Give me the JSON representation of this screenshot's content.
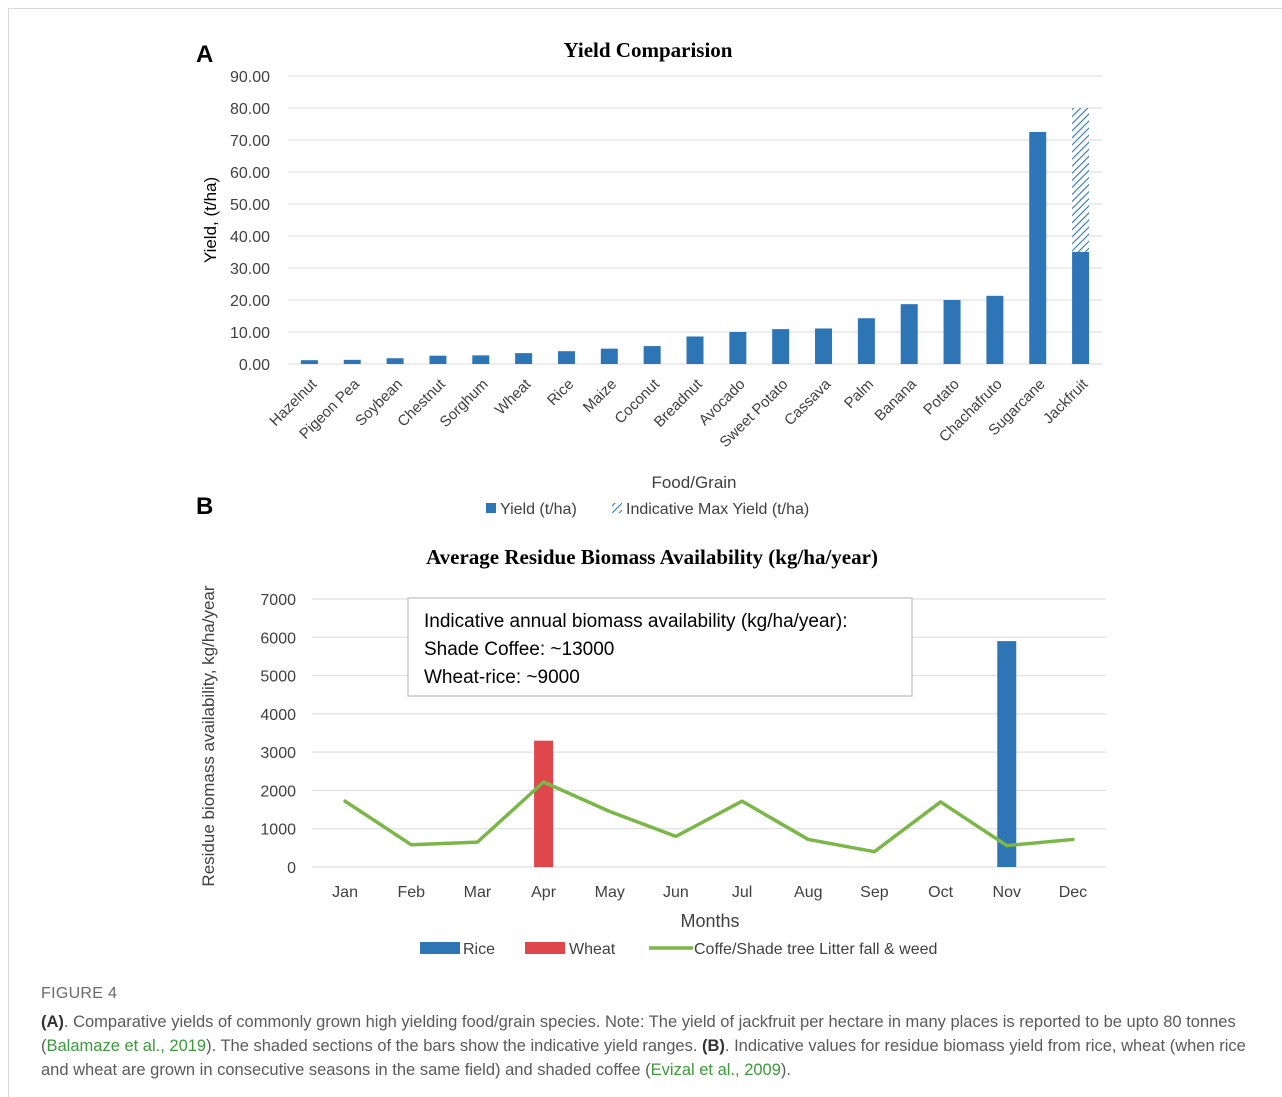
{
  "panel_a_letter": "A",
  "panel_b_letter": "B",
  "chart_data": [
    {
      "type": "bar",
      "title": "Yield Comparision",
      "xlabel": "Food/Grain",
      "ylabel": "Yield, (t/ha)",
      "ylim": [
        0,
        90
      ],
      "yticks": [
        "0.00",
        "10.00",
        "20.00",
        "30.00",
        "40.00",
        "50.00",
        "60.00",
        "70.00",
        "80.00",
        "90.00"
      ],
      "categories": [
        "Hazelnut",
        "Pigeon Pea",
        "Soybean",
        "Chestnut",
        "Sorghum",
        "Wheat",
        "Rice",
        "Maize",
        "Coconut",
        "Breadnut",
        "Avocado",
        "Sweet Potato",
        "Cassava",
        "Palm",
        "Banana",
        "Potato",
        "Chachafruto",
        "Sugarcane",
        "Jackfruit"
      ],
      "series": [
        {
          "name": "Yield (t/ha)",
          "color": "#2e75b6",
          "values": [
            1.2,
            1.3,
            1.8,
            2.6,
            2.7,
            3.4,
            4.0,
            4.8,
            5.6,
            8.6,
            10.0,
            10.9,
            11.1,
            14.3,
            18.7,
            20.0,
            21.3,
            72.5,
            35.0
          ]
        },
        {
          "name": "Indicative Max Yield (t/ha)",
          "color": "#2e75b6",
          "pattern": "hatched",
          "values": [
            0,
            0,
            0,
            0,
            0,
            0,
            0,
            0,
            0,
            0,
            0,
            0,
            0,
            0,
            0,
            0,
            0,
            0,
            45.0
          ]
        }
      ],
      "grid": true,
      "legend": "bottom"
    },
    {
      "type": "bar+line",
      "title": "Average Residue Biomass Availability (kg/ha/year)",
      "xlabel": "Months",
      "ylabel": "Residue biomass availability, kg/ha/year",
      "ylim": [
        0,
        7000
      ],
      "yticks": [
        "0",
        "1000",
        "2000",
        "3000",
        "4000",
        "5000",
        "6000",
        "7000"
      ],
      "categories": [
        "Jan",
        "Feb",
        "Mar",
        "Apr",
        "May",
        "Jun",
        "Jul",
        "Aug",
        "Sep",
        "Oct",
        "Nov",
        "Dec"
      ],
      "series": [
        {
          "name": "Rice",
          "type": "bar",
          "color": "#2e75b6",
          "values": [
            0,
            0,
            0,
            0,
            0,
            0,
            0,
            0,
            0,
            0,
            5900,
            0
          ]
        },
        {
          "name": "Wheat",
          "type": "bar",
          "color": "#e0474c",
          "values": [
            0,
            0,
            0,
            3300,
            0,
            0,
            0,
            0,
            0,
            0,
            0,
            0
          ]
        },
        {
          "name": "Coffe/Shade tree Litter fall & weed",
          "type": "line",
          "color": "#7ab648",
          "values": [
            1720,
            580,
            650,
            2220,
            1450,
            800,
            1720,
            720,
            400,
            1700,
            560,
            720
          ]
        }
      ],
      "annotation": [
        "Indicative annual biomass availability (kg/ha/year):",
        "Shade Coffee: ~13000",
        "Wheat-rice: ~9000"
      ],
      "grid": true,
      "legend": "bottom"
    }
  ],
  "caption": {
    "figure_label": "FIGURE 4",
    "part_a": "(A)",
    "text1": ". Comparative yields of commonly grown high yielding food/grain species. Note: The yield of jackfruit per hectare in many places is reported to be upto 80 tonnes (",
    "cite1": "Balamaze et al., 2019",
    "text2": "). The shaded sections of the bars show the indicative yield ranges. ",
    "part_b": "(B)",
    "text3": ". Indicative values for residue biomass yield from rice, wheat (when rice and wheat are grown in consecutive seasons in the same field) and shaded coffee (",
    "cite2": "Evizal et al., 2009",
    "text4": ")."
  },
  "colors": {
    "blue": "#2e75b6",
    "red": "#e0474c",
    "green": "#7ab648",
    "grid": "#d9d9d9"
  }
}
